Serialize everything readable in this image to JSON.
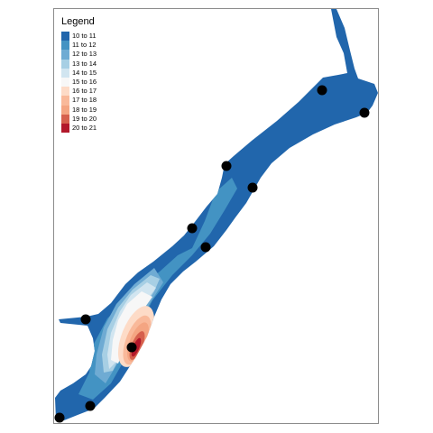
{
  "legend": {
    "title": "Legend",
    "classes": [
      {
        "label": "10 to 11",
        "color": "#2166ac"
      },
      {
        "label": "11 to 12",
        "color": "#4393c3"
      },
      {
        "label": "12 to 13",
        "color": "#6fabd3"
      },
      {
        "label": "13 to 14",
        "color": "#a7cfe4"
      },
      {
        "label": "14 to 15",
        "color": "#d1e5f0"
      },
      {
        "label": "15 to 16",
        "color": "#f7f7f7"
      },
      {
        "label": "16 to 17",
        "color": "#fddbc7"
      },
      {
        "label": "17 to 18",
        "color": "#f9b99a"
      },
      {
        "label": "18 to 19",
        "color": "#f4a582"
      },
      {
        "label": "19 to 20",
        "color": "#d6604d"
      },
      {
        "label": "20 to 21",
        "color": "#b2182b"
      }
    ]
  },
  "map": {
    "point_count": 11,
    "point_color": "#000000",
    "frame_color": "#8c8c8c"
  }
}
